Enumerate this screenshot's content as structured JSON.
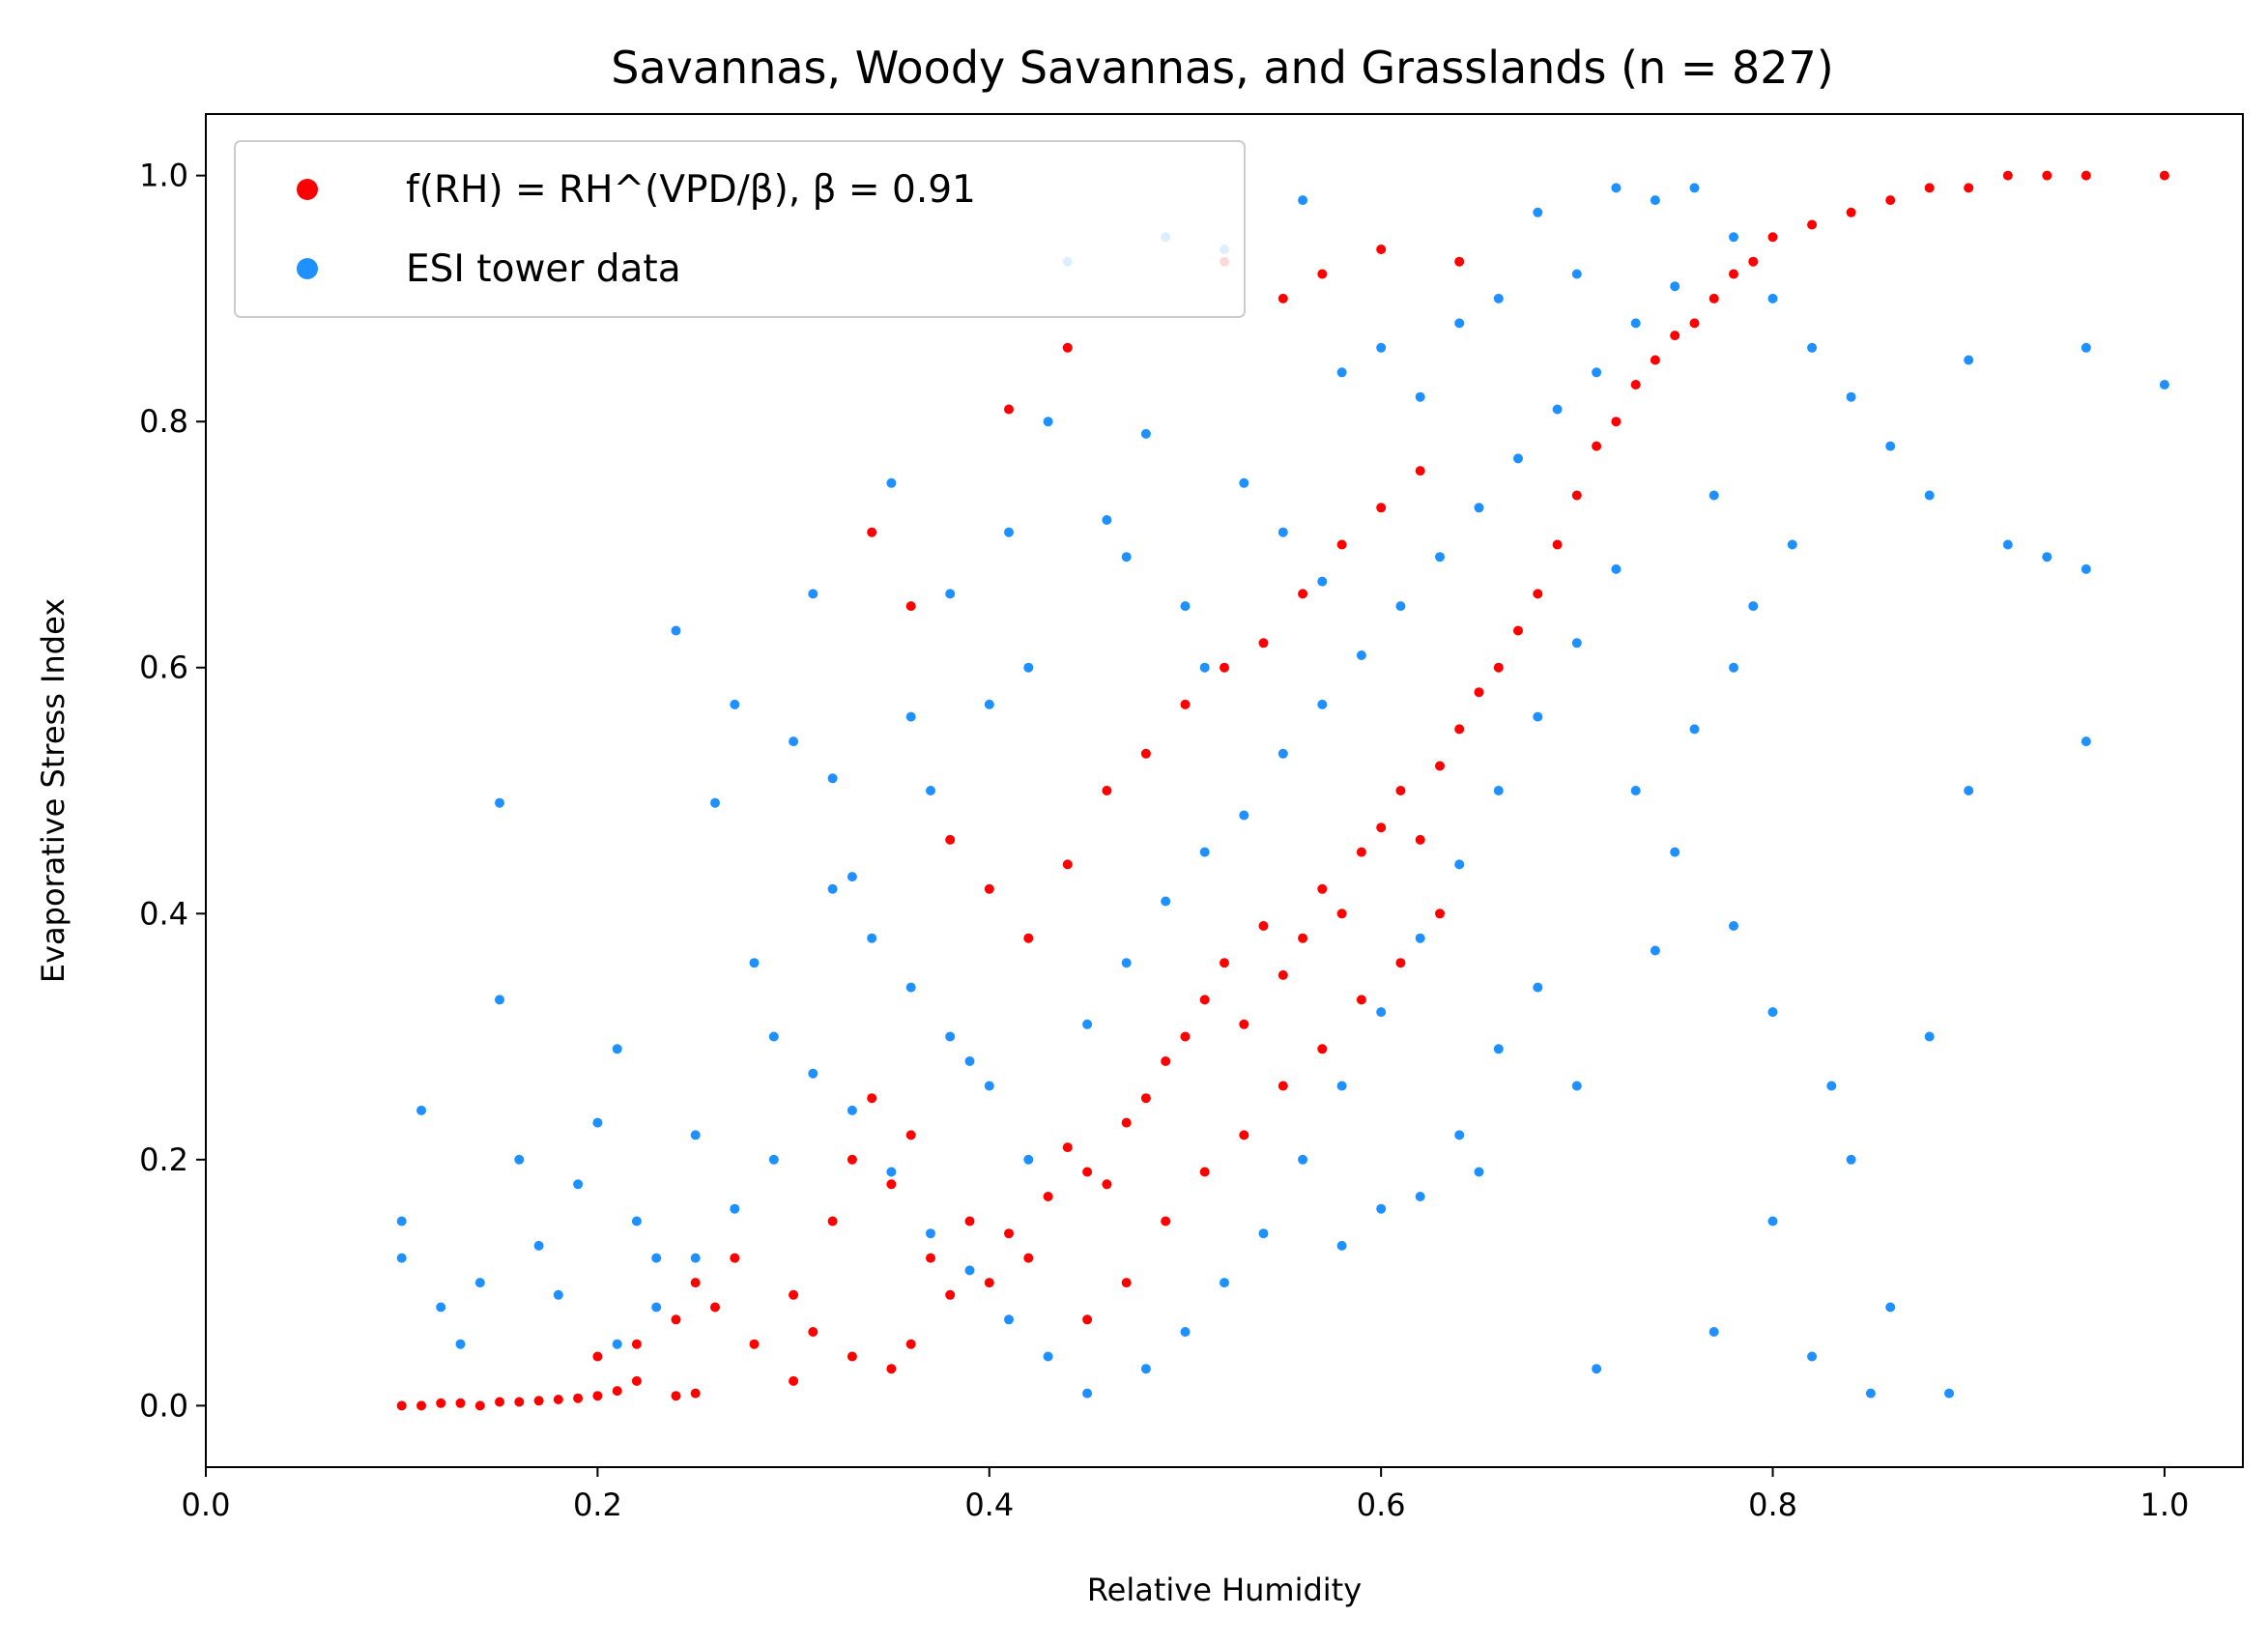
{
  "chart_data": {
    "type": "scatter",
    "title": "Savannas, Woody Savannas, and Grasslands (n = 827)",
    "xlabel": "Relative Humidity",
    "ylabel": "Evaporative Stress Index",
    "xlim": [
      0.0,
      1.04
    ],
    "ylim": [
      -0.05,
      1.05
    ],
    "xticks": [
      "0.0",
      "0.2",
      "0.4",
      "0.6",
      "0.8",
      "1.0"
    ],
    "yticks": [
      "0.0",
      "0.2",
      "0.4",
      "0.6",
      "0.8",
      "1.0"
    ],
    "grid": false,
    "legend_position": "top-left",
    "series": [
      {
        "name": "f(RH) = RH^(VPD/β), β = 0.91",
        "color": "#ff0000",
        "points": [
          [
            0.1,
            0.0
          ],
          [
            0.11,
            0.0
          ],
          [
            0.12,
            0.002
          ],
          [
            0.13,
            0.002
          ],
          [
            0.14,
            0.0
          ],
          [
            0.15,
            0.003
          ],
          [
            0.16,
            0.003
          ],
          [
            0.17,
            0.004
          ],
          [
            0.18,
            0.005
          ],
          [
            0.19,
            0.006
          ],
          [
            0.2,
            0.008
          ],
          [
            0.21,
            0.012
          ],
          [
            0.22,
            0.02
          ],
          [
            0.24,
            0.008
          ],
          [
            0.25,
            0.01
          ],
          [
            0.2,
            0.04
          ],
          [
            0.22,
            0.05
          ],
          [
            0.24,
            0.07
          ],
          [
            0.25,
            0.1
          ],
          [
            0.26,
            0.08
          ],
          [
            0.27,
            0.12
          ],
          [
            0.28,
            0.05
          ],
          [
            0.3,
            0.09
          ],
          [
            0.31,
            0.06
          ],
          [
            0.33,
            0.04
          ],
          [
            0.35,
            0.03
          ],
          [
            0.36,
            0.05
          ],
          [
            0.3,
            0.02
          ],
          [
            0.32,
            0.15
          ],
          [
            0.33,
            0.2
          ],
          [
            0.34,
            0.25
          ],
          [
            0.35,
            0.18
          ],
          [
            0.36,
            0.22
          ],
          [
            0.37,
            0.12
          ],
          [
            0.38,
            0.09
          ],
          [
            0.39,
            0.15
          ],
          [
            0.4,
            0.1
          ],
          [
            0.41,
            0.14
          ],
          [
            0.42,
            0.12
          ],
          [
            0.43,
            0.17
          ],
          [
            0.44,
            0.21
          ],
          [
            0.45,
            0.19
          ],
          [
            0.46,
            0.18
          ],
          [
            0.47,
            0.23
          ],
          [
            0.48,
            0.25
          ],
          [
            0.49,
            0.28
          ],
          [
            0.5,
            0.3
          ],
          [
            0.51,
            0.33
          ],
          [
            0.52,
            0.36
          ],
          [
            0.53,
            0.31
          ],
          [
            0.54,
            0.39
          ],
          [
            0.55,
            0.35
          ],
          [
            0.56,
            0.38
          ],
          [
            0.57,
            0.42
          ],
          [
            0.58,
            0.4
          ],
          [
            0.59,
            0.45
          ],
          [
            0.6,
            0.47
          ],
          [
            0.61,
            0.5
          ],
          [
            0.62,
            0.46
          ],
          [
            0.63,
            0.52
          ],
          [
            0.64,
            0.55
          ],
          [
            0.65,
            0.58
          ],
          [
            0.66,
            0.6
          ],
          [
            0.67,
            0.63
          ],
          [
            0.68,
            0.66
          ],
          [
            0.69,
            0.7
          ],
          [
            0.7,
            0.74
          ],
          [
            0.71,
            0.78
          ],
          [
            0.72,
            0.8
          ],
          [
            0.73,
            0.83
          ],
          [
            0.74,
            0.85
          ],
          [
            0.75,
            0.87
          ],
          [
            0.76,
            0.88
          ],
          [
            0.77,
            0.9
          ],
          [
            0.78,
            0.92
          ],
          [
            0.79,
            0.93
          ],
          [
            0.8,
            0.95
          ],
          [
            0.82,
            0.96
          ],
          [
            0.84,
            0.97
          ],
          [
            0.86,
            0.98
          ],
          [
            0.88,
            0.99
          ],
          [
            0.9,
            0.99
          ],
          [
            0.92,
            1.0
          ],
          [
            0.94,
            1.0
          ],
          [
            0.96,
            1.0
          ],
          [
            1.0,
            1.0
          ],
          [
            0.38,
            0.46
          ],
          [
            0.4,
            0.42
          ],
          [
            0.42,
            0.38
          ],
          [
            0.44,
            0.44
          ],
          [
            0.46,
            0.5
          ],
          [
            0.48,
            0.53
          ],
          [
            0.5,
            0.57
          ],
          [
            0.52,
            0.6
          ],
          [
            0.54,
            0.62
          ],
          [
            0.56,
            0.66
          ],
          [
            0.58,
            0.7
          ],
          [
            0.6,
            0.73
          ],
          [
            0.62,
            0.76
          ],
          [
            0.34,
            0.71
          ],
          [
            0.36,
            0.65
          ],
          [
            0.41,
            0.81
          ],
          [
            0.44,
            0.86
          ],
          [
            0.52,
            0.93
          ],
          [
            0.55,
            0.9
          ],
          [
            0.57,
            0.92
          ],
          [
            0.6,
            0.94
          ],
          [
            0.64,
            0.93
          ],
          [
            0.45,
            0.07
          ],
          [
            0.47,
            0.1
          ],
          [
            0.49,
            0.15
          ],
          [
            0.51,
            0.19
          ],
          [
            0.53,
            0.22
          ],
          [
            0.55,
            0.26
          ],
          [
            0.57,
            0.29
          ],
          [
            0.59,
            0.33
          ],
          [
            0.61,
            0.36
          ],
          [
            0.63,
            0.4
          ]
        ]
      },
      {
        "name": "ESI tower data",
        "color": "#1e90ff",
        "points": [
          [
            0.1,
            0.12
          ],
          [
            0.1,
            0.15
          ],
          [
            0.11,
            0.24
          ],
          [
            0.12,
            0.08
          ],
          [
            0.13,
            0.05
          ],
          [
            0.14,
            0.1
          ],
          [
            0.15,
            0.49
          ],
          [
            0.15,
            0.33
          ],
          [
            0.16,
            0.2
          ],
          [
            0.17,
            0.13
          ],
          [
            0.18,
            0.09
          ],
          [
            0.19,
            0.18
          ],
          [
            0.2,
            0.23
          ],
          [
            0.21,
            0.29
          ],
          [
            0.22,
            0.15
          ],
          [
            0.23,
            0.12
          ],
          [
            0.24,
            0.63
          ],
          [
            0.25,
            0.22
          ],
          [
            0.26,
            0.49
          ],
          [
            0.27,
            0.57
          ],
          [
            0.28,
            0.36
          ],
          [
            0.29,
            0.3
          ],
          [
            0.3,
            0.54
          ],
          [
            0.31,
            0.66
          ],
          [
            0.32,
            0.51
          ],
          [
            0.33,
            0.43
          ],
          [
            0.35,
            0.75
          ],
          [
            0.36,
            0.56
          ],
          [
            0.37,
            0.5
          ],
          [
            0.38,
            0.66
          ],
          [
            0.39,
            0.28
          ],
          [
            0.4,
            0.57
          ],
          [
            0.41,
            0.71
          ],
          [
            0.42,
            0.6
          ],
          [
            0.43,
            0.8
          ],
          [
            0.44,
            0.93
          ],
          [
            0.46,
            0.72
          ],
          [
            0.47,
            0.69
          ],
          [
            0.48,
            0.79
          ],
          [
            0.49,
            0.95
          ],
          [
            0.5,
            0.65
          ],
          [
            0.51,
            0.6
          ],
          [
            0.52,
            0.94
          ],
          [
            0.53,
            0.75
          ],
          [
            0.55,
            0.71
          ],
          [
            0.56,
            0.98
          ],
          [
            0.57,
            0.67
          ],
          [
            0.58,
            0.84
          ],
          [
            0.6,
            0.86
          ],
          [
            0.62,
            0.82
          ],
          [
            0.64,
            0.88
          ],
          [
            0.66,
            0.9
          ],
          [
            0.68,
            0.97
          ],
          [
            0.7,
            0.92
          ],
          [
            0.72,
            0.99
          ],
          [
            0.74,
            0.98
          ],
          [
            0.76,
            0.99
          ],
          [
            0.78,
            0.95
          ],
          [
            0.8,
            0.9
          ],
          [
            0.82,
            0.86
          ],
          [
            0.84,
            0.82
          ],
          [
            0.86,
            0.78
          ],
          [
            0.88,
            0.74
          ],
          [
            0.9,
            0.85
          ],
          [
            0.92,
            0.7
          ],
          [
            0.94,
            0.69
          ],
          [
            0.96,
            0.68
          ],
          [
            0.96,
            0.86
          ],
          [
            1.0,
            0.83
          ],
          [
            0.96,
            0.54
          ],
          [
            0.9,
            0.5
          ],
          [
            0.88,
            0.3
          ],
          [
            0.86,
            0.08
          ],
          [
            0.89,
            0.01
          ],
          [
            0.85,
            0.01
          ],
          [
            0.82,
            0.04
          ],
          [
            0.8,
            0.15
          ],
          [
            0.77,
            0.06
          ],
          [
            0.71,
            0.03
          ],
          [
            0.78,
            0.39
          ],
          [
            0.8,
            0.32
          ],
          [
            0.83,
            0.26
          ],
          [
            0.84,
            0.2
          ],
          [
            0.74,
            0.37
          ],
          [
            0.75,
            0.45
          ],
          [
            0.73,
            0.5
          ],
          [
            0.76,
            0.55
          ],
          [
            0.78,
            0.6
          ],
          [
            0.79,
            0.65
          ],
          [
            0.81,
            0.7
          ],
          [
            0.77,
            0.74
          ],
          [
            0.72,
            0.68
          ],
          [
            0.7,
            0.62
          ],
          [
            0.68,
            0.56
          ],
          [
            0.66,
            0.5
          ],
          [
            0.64,
            0.44
          ],
          [
            0.62,
            0.38
          ],
          [
            0.6,
            0.32
          ],
          [
            0.58,
            0.26
          ],
          [
            0.56,
            0.2
          ],
          [
            0.54,
            0.14
          ],
          [
            0.52,
            0.1
          ],
          [
            0.5,
            0.06
          ],
          [
            0.48,
            0.03
          ],
          [
            0.45,
            0.01
          ],
          [
            0.43,
            0.04
          ],
          [
            0.41,
            0.07
          ],
          [
            0.39,
            0.11
          ],
          [
            0.37,
            0.14
          ],
          [
            0.35,
            0.19
          ],
          [
            0.33,
            0.24
          ],
          [
            0.31,
            0.27
          ],
          [
            0.29,
            0.2
          ],
          [
            0.27,
            0.16
          ],
          [
            0.25,
            0.12
          ],
          [
            0.23,
            0.08
          ],
          [
            0.21,
            0.05
          ],
          [
            0.45,
            0.31
          ],
          [
            0.47,
            0.36
          ],
          [
            0.49,
            0.41
          ],
          [
            0.51,
            0.45
          ],
          [
            0.53,
            0.48
          ],
          [
            0.55,
            0.53
          ],
          [
            0.57,
            0.57
          ],
          [
            0.59,
            0.61
          ],
          [
            0.61,
            0.65
          ],
          [
            0.63,
            0.69
          ],
          [
            0.65,
            0.73
          ],
          [
            0.67,
            0.77
          ],
          [
            0.69,
            0.81
          ],
          [
            0.71,
            0.84
          ],
          [
            0.73,
            0.88
          ],
          [
            0.75,
            0.91
          ],
          [
            0.6,
            0.16
          ],
          [
            0.65,
            0.19
          ],
          [
            0.7,
            0.26
          ],
          [
            0.68,
            0.34
          ],
          [
            0.66,
            0.29
          ],
          [
            0.64,
            0.22
          ],
          [
            0.62,
            0.17
          ],
          [
            0.58,
            0.13
          ],
          [
            0.42,
            0.2
          ],
          [
            0.4,
            0.26
          ],
          [
            0.38,
            0.3
          ],
          [
            0.36,
            0.34
          ],
          [
            0.34,
            0.38
          ],
          [
            0.32,
            0.42
          ]
        ]
      }
    ]
  }
}
